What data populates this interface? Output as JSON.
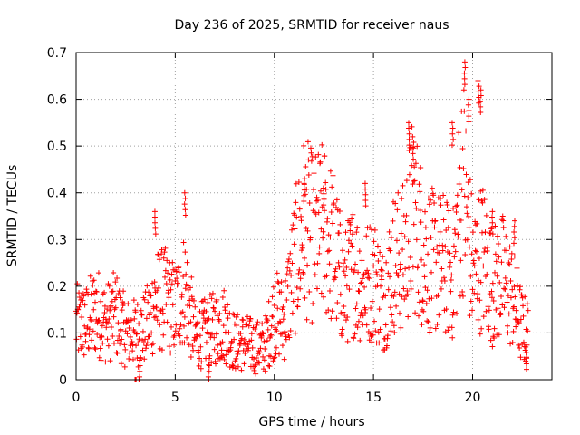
{
  "chart_data": {
    "type": "scatter",
    "title": "Day 236 of 2025, SRMTID for receiver naus",
    "xlabel": "GPS time / hours",
    "ylabel": "SRMTID / TECUs",
    "xlim": [
      0,
      24
    ],
    "ylim": [
      0,
      0.7
    ],
    "x_ticks": [
      0,
      5,
      10,
      15,
      20
    ],
    "x_tick_labels": [
      "0",
      "5",
      "10",
      "15",
      "20"
    ],
    "y_ticks": [
      0,
      0.1,
      0.2,
      0.3,
      0.4,
      0.5,
      0.6,
      0.7
    ],
    "y_tick_labels": [
      "0",
      "0.1",
      "0.2",
      "0.3",
      "0.4",
      "0.5",
      "0.6",
      "0.7"
    ],
    "grid": true,
    "marker": "+",
    "series_color": "#ff0000",
    "series": [
      {
        "name": "SRMTID",
        "trend": [
          [
            0.0,
            0.12
          ],
          [
            0.5,
            0.12
          ],
          [
            1.0,
            0.15
          ],
          [
            1.5,
            0.12
          ],
          [
            2.0,
            0.14
          ],
          [
            2.5,
            0.1
          ],
          [
            3.0,
            0.1
          ],
          [
            3.5,
            0.11
          ],
          [
            4.0,
            0.17
          ],
          [
            4.5,
            0.17
          ],
          [
            5.0,
            0.15
          ],
          [
            5.5,
            0.2
          ],
          [
            6.0,
            0.09
          ],
          [
            6.5,
            0.1
          ],
          [
            7.0,
            0.11
          ],
          [
            7.5,
            0.12
          ],
          [
            8.0,
            0.08
          ],
          [
            8.5,
            0.08
          ],
          [
            9.0,
            0.07
          ],
          [
            9.5,
            0.07
          ],
          [
            10.0,
            0.14
          ],
          [
            10.5,
            0.13
          ],
          [
            11.0,
            0.24
          ],
          [
            11.5,
            0.33
          ],
          [
            12.0,
            0.3
          ],
          [
            12.5,
            0.32
          ],
          [
            13.0,
            0.28
          ],
          [
            13.5,
            0.19
          ],
          [
            14.0,
            0.24
          ],
          [
            14.5,
            0.2
          ],
          [
            15.0,
            0.22
          ],
          [
            15.5,
            0.17
          ],
          [
            16.0,
            0.25
          ],
          [
            16.5,
            0.26
          ],
          [
            17.0,
            0.36
          ],
          [
            17.5,
            0.28
          ],
          [
            18.0,
            0.25
          ],
          [
            18.5,
            0.25
          ],
          [
            19.0,
            0.22
          ],
          [
            19.5,
            0.44
          ],
          [
            20.0,
            0.23
          ],
          [
            20.5,
            0.27
          ],
          [
            21.0,
            0.2
          ],
          [
            21.5,
            0.22
          ],
          [
            22.0,
            0.18
          ],
          [
            22.5,
            0.11
          ],
          [
            22.8,
            0.1
          ]
        ],
        "spikes": [
          [
            3.0,
            0.0
          ],
          [
            3.2,
            0.03
          ],
          [
            4.0,
            0.36
          ],
          [
            5.5,
            0.4
          ],
          [
            6.7,
            0.03
          ],
          [
            11.5,
            0.43
          ],
          [
            12.5,
            0.41
          ],
          [
            14.6,
            0.42
          ],
          [
            16.8,
            0.55
          ],
          [
            17.0,
            0.52
          ],
          [
            19.0,
            0.55
          ],
          [
            19.6,
            0.68
          ],
          [
            20.3,
            0.64
          ],
          [
            20.4,
            0.62
          ],
          [
            19.8,
            0.6
          ],
          [
            21.0,
            0.36
          ],
          [
            22.1,
            0.34
          ],
          [
            22.7,
            0.07
          ]
        ]
      }
    ]
  }
}
